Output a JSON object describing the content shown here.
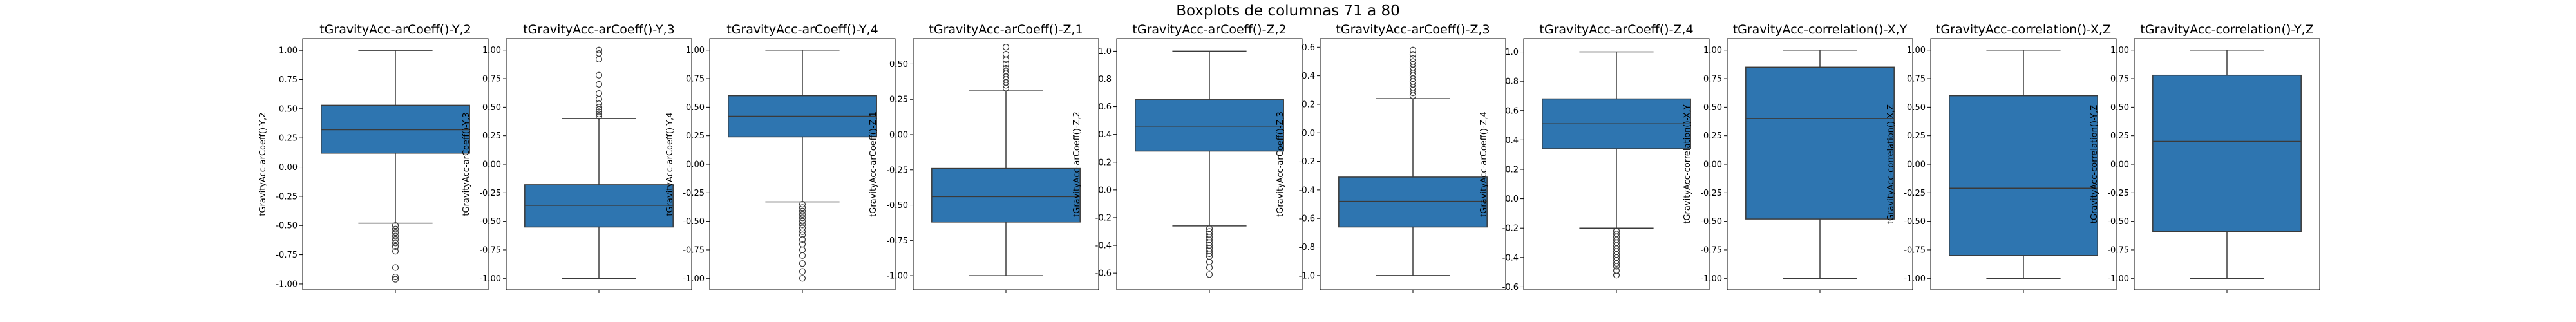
{
  "figure": {
    "title": "Boxplots de columnas 71 a 80",
    "box_color": "#2e75b0"
  },
  "chart_data": [
    {
      "type": "boxplot",
      "title": "tGravityAcc-arCoeff()-Y,2",
      "ylabel": "tGravityAcc-arCoeff()-Y,2",
      "ylim": [
        -1.05,
        1.1
      ],
      "yticks": [
        -1.0,
        -0.75,
        -0.5,
        -0.25,
        0.0,
        0.25,
        0.5,
        0.75,
        1.0
      ],
      "tick_decimals": 2,
      "whisker_low": -0.48,
      "q1": 0.12,
      "median": 0.32,
      "q3": 0.53,
      "whisker_high": 1.0,
      "outliers": [
        -0.5,
        -0.53,
        -0.56,
        -0.59,
        -0.62,
        -0.65,
        -0.68,
        -0.72,
        -0.86,
        -0.94,
        -0.96
      ]
    },
    {
      "type": "boxplot",
      "title": "tGravityAcc-arCoeff()-Y,3",
      "ylabel": "tGravityAcc-arCoeff()-Y,3",
      "ylim": [
        -1.1,
        1.1
      ],
      "yticks": [
        -1.0,
        -0.75,
        -0.5,
        -0.25,
        0.0,
        0.25,
        0.5,
        0.75,
        1.0
      ],
      "tick_decimals": 2,
      "whisker_low": -1.0,
      "q1": -0.55,
      "median": -0.36,
      "q3": -0.18,
      "whisker_high": 0.4,
      "outliers": [
        0.42,
        0.44,
        0.46,
        0.48,
        0.5,
        0.53,
        0.57,
        0.62,
        0.7,
        0.78,
        0.92,
        0.97,
        1.0
      ]
    },
    {
      "type": "boxplot",
      "title": "tGravityAcc-arCoeff()-Y,4",
      "ylabel": "tGravityAcc-arCoeff()-Y,4",
      "ylim": [
        -1.1,
        1.1
      ],
      "yticks": [
        -1.0,
        -0.75,
        -0.5,
        -0.25,
        0.0,
        0.25,
        0.5,
        0.75,
        1.0
      ],
      "tick_decimals": 2,
      "whisker_low": -0.33,
      "q1": 0.24,
      "median": 0.42,
      "q3": 0.6,
      "whisker_high": 1.0,
      "outliers": [
        -0.35,
        -0.38,
        -0.41,
        -0.44,
        -0.47,
        -0.5,
        -0.53,
        -0.56,
        -0.59,
        -0.62,
        -0.66,
        -0.7,
        -0.75,
        -0.8,
        -0.87,
        -0.94,
        -1.0
      ]
    },
    {
      "type": "boxplot",
      "title": "tGravityAcc-arCoeff()-Z,1",
      "ylabel": "tGravityAcc-arCoeff()-Z,1",
      "ylim": [
        -1.1,
        0.68
      ],
      "yticks": [
        -1.0,
        -0.75,
        -0.5,
        -0.25,
        0.0,
        0.25,
        0.5
      ],
      "tick_decimals": 2,
      "whisker_low": -1.0,
      "q1": -0.62,
      "median": -0.44,
      "q3": -0.24,
      "whisker_high": 0.31,
      "outliers": [
        0.33,
        0.35,
        0.37,
        0.39,
        0.41,
        0.43,
        0.45,
        0.47,
        0.5,
        0.53,
        0.57,
        0.62
      ]
    },
    {
      "type": "boxplot",
      "title": "tGravityAcc-arCoeff()-Z,2",
      "ylabel": "tGravityAcc-arCoeff()-Z,2",
      "ylim": [
        -0.72,
        1.09
      ],
      "yticks": [
        -0.6,
        -0.4,
        -0.2,
        0.0,
        0.2,
        0.4,
        0.6,
        0.8,
        1.0
      ],
      "tick_decimals": 1,
      "whisker_low": -0.26,
      "q1": 0.28,
      "median": 0.46,
      "q3": 0.65,
      "whisker_high": 1.0,
      "outliers": [
        -0.28,
        -0.3,
        -0.32,
        -0.34,
        -0.36,
        -0.38,
        -0.4,
        -0.42,
        -0.44,
        -0.46,
        -0.48,
        -0.52,
        -0.56,
        -0.61
      ]
    },
    {
      "type": "boxplot",
      "title": "tGravityAcc-arCoeff()-Z,3",
      "ylabel": "tGravityAcc-arCoeff()-Z,3",
      "ylim": [
        -1.1,
        0.66
      ],
      "yticks": [
        -1.0,
        -0.8,
        -0.6,
        -0.4,
        -0.2,
        0.0,
        0.2,
        0.4,
        0.6
      ],
      "tick_decimals": 1,
      "whisker_low": -1.0,
      "q1": -0.66,
      "median": -0.48,
      "q3": -0.31,
      "whisker_high": 0.24,
      "outliers": [
        0.26,
        0.28,
        0.3,
        0.32,
        0.34,
        0.36,
        0.38,
        0.4,
        0.42,
        0.44,
        0.46,
        0.48,
        0.5,
        0.52,
        0.55,
        0.58
      ]
    },
    {
      "type": "boxplot",
      "title": "tGravityAcc-arCoeff()-Z,4",
      "ylabel": "tGravityAcc-arCoeff()-Z,4",
      "ylim": [
        -0.62,
        1.09
      ],
      "yticks": [
        -0.6,
        -0.4,
        -0.2,
        0.0,
        0.2,
        0.4,
        0.6,
        0.8,
        1.0
      ],
      "tick_decimals": 1,
      "whisker_low": -0.2,
      "q1": 0.34,
      "median": 0.51,
      "q3": 0.68,
      "whisker_high": 1.0,
      "outliers": [
        -0.22,
        -0.24,
        -0.26,
        -0.28,
        -0.3,
        -0.32,
        -0.34,
        -0.36,
        -0.38,
        -0.4,
        -0.42,
        -0.44,
        -0.46,
        -0.49,
        -0.52
      ]
    },
    {
      "type": "boxplot",
      "title": "tGravityAcc-correlation()-X,Y",
      "ylabel": "tGravityAcc-correlation()-X,Y",
      "ylim": [
        -1.1,
        1.1
      ],
      "yticks": [
        -1.0,
        -0.75,
        -0.5,
        -0.25,
        0.0,
        0.25,
        0.5,
        0.75,
        1.0
      ],
      "tick_decimals": 2,
      "whisker_low": -1.0,
      "q1": -0.48,
      "median": 0.4,
      "q3": 0.85,
      "whisker_high": 1.0,
      "outliers": []
    },
    {
      "type": "boxplot",
      "title": "tGravityAcc-correlation()-X,Z",
      "ylabel": "tGravityAcc-correlation()-X,Z",
      "ylim": [
        -1.1,
        1.1
      ],
      "yticks": [
        -1.0,
        -0.75,
        -0.5,
        -0.25,
        0.0,
        0.25,
        0.5,
        0.75,
        1.0
      ],
      "tick_decimals": 2,
      "whisker_low": -1.0,
      "q1": -0.8,
      "median": -0.21,
      "q3": 0.6,
      "whisker_high": 1.0,
      "outliers": []
    },
    {
      "type": "boxplot",
      "title": "tGravityAcc-correlation()-Y,Z",
      "ylabel": "tGravityAcc-correlation()-Y,Z",
      "ylim": [
        -1.1,
        1.1
      ],
      "yticks": [
        -1.0,
        -0.75,
        -0.5,
        -0.25,
        0.0,
        0.25,
        0.5,
        0.75,
        1.0
      ],
      "tick_decimals": 2,
      "whisker_low": -1.0,
      "q1": -0.59,
      "median": 0.2,
      "q3": 0.78,
      "whisker_high": 1.0,
      "outliers": []
    }
  ]
}
